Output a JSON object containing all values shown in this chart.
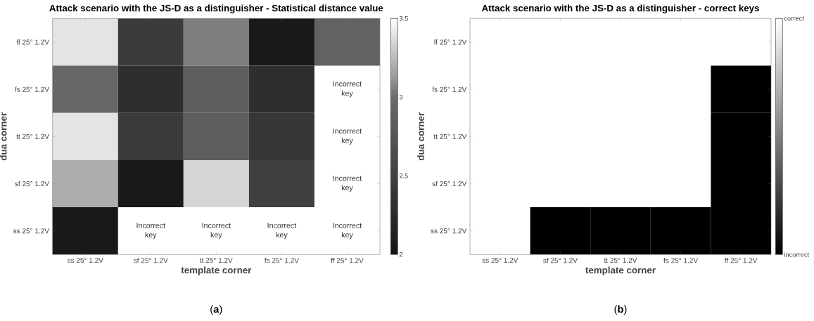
{
  "chart_data": [
    {
      "type": "heatmap",
      "title": "Attack scenario with the JS-D as a distinguisher - Statistical distance value",
      "xlabel": "template corner",
      "ylabel": "dua corner",
      "categories": [
        "ss 25° 1.2V",
        "sf 25° 1.2V",
        "tt 25° 1.2V",
        "fs 25° 1.2V",
        "ff 25° 1.2V"
      ],
      "y_categories": [
        "ff 25° 1.2V",
        "fs 25° 1.2V",
        "tt 25° 1.2V",
        "sf 25° 1.2V",
        "ss 25° 1.2V"
      ],
      "cells": [
        [
          3.4,
          2.45,
          3.05,
          2.05,
          2.9
        ],
        [
          2.95,
          2.3,
          2.85,
          2.3,
          null
        ],
        [
          3.4,
          2.45,
          2.85,
          2.4,
          null
        ],
        [
          3.2,
          2.05,
          3.35,
          2.5,
          null
        ],
        [
          2.05,
          null,
          null,
          null,
          null
        ]
      ],
      "cell_labels": [
        [
          null,
          null,
          null,
          null,
          null
        ],
        [
          null,
          null,
          null,
          null,
          "Incorrect key"
        ],
        [
          null,
          null,
          null,
          null,
          "Incorrect key"
        ],
        [
          null,
          null,
          null,
          null,
          "Incorrect key"
        ],
        [
          null,
          "Incorrect key",
          "Incorrect key",
          "Incorrect key",
          "Incorrect key"
        ]
      ],
      "clim": [
        2,
        3.5
      ],
      "cticks": [
        2,
        2.5,
        3,
        3.5
      ],
      "annotations": [
        "(**a**)"
      ]
    },
    {
      "type": "heatmap",
      "title": "Attack scenario with the JS-D as a distinguisher - correct keys",
      "xlabel": "template corner",
      "ylabel": "dua corner",
      "categories": [
        "ss 25° 1.2V",
        "sf 25° 1.2V",
        "tt 25° 1.2V",
        "fs 25° 1.2V",
        "ff 25° 1.2V"
      ],
      "y_categories": [
        "ff 25° 1.2V",
        "fs 25° 1.2V",
        "tt 25° 1.2V",
        "sf 25° 1.2V",
        "ss 25° 1.2V"
      ],
      "cells": [
        [
          1,
          1,
          1,
          1,
          1
        ],
        [
          1,
          1,
          1,
          1,
          0
        ],
        [
          1,
          1,
          1,
          1,
          0
        ],
        [
          1,
          1,
          1,
          1,
          0
        ],
        [
          1,
          0,
          0,
          0,
          0
        ]
      ],
      "clim": [
        0,
        1
      ],
      "cticks": [
        {
          "value": 0,
          "label": "incorrect"
        },
        {
          "value": 1,
          "label": "correct"
        }
      ],
      "annotations": [
        "(**b**)"
      ]
    }
  ]
}
